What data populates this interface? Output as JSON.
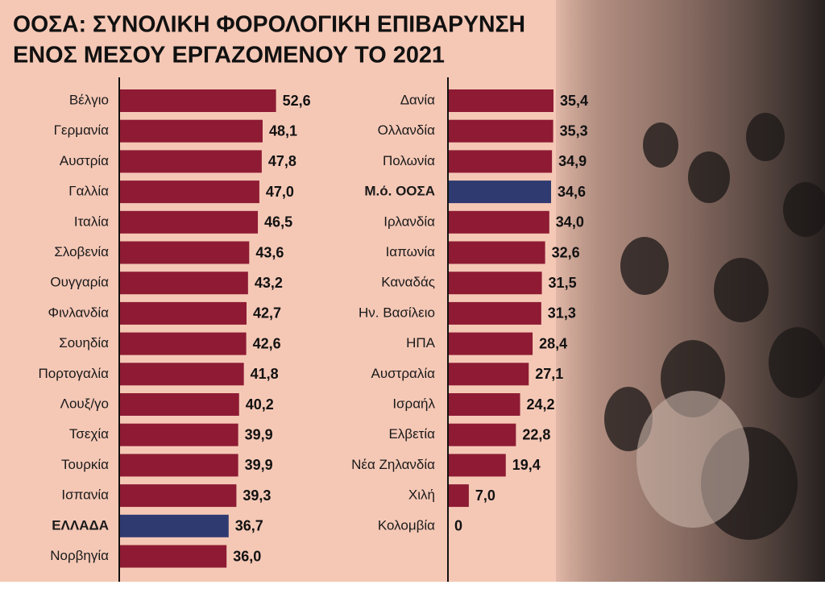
{
  "title": [
    "ΟΟΣΑ: ΣΥΝΟΛΙΚΗ ΦΟΡΟΛΟΓΙΚΗ ΕΠΙΒΑΡΥΝΣΗ",
    "ΕΝΟΣ ΜΕΣΟΥ ΕΡΓΑΖΟΜΕΝΟΥ ΤΟ 2021"
  ],
  "chart_data": [
    {
      "type": "bar",
      "orientation": "horizontal",
      "categories": [
        "Βέλγιο",
        "Γερμανία",
        "Αυστρία",
        "Γαλλία",
        "Ιταλία",
        "Σλοβενία",
        "Ουγγαρία",
        "Φινλανδία",
        "Σουηδία",
        "Πορτογαλία",
        "Λουξ/γο",
        "Τσεχία",
        "Τουρκία",
        "Ισπανία",
        "ΕΛΛΑΔΑ",
        "Νορβηγία"
      ],
      "values": [
        52.6,
        48.1,
        47.8,
        47.0,
        46.5,
        43.6,
        43.2,
        42.7,
        42.6,
        41.8,
        40.2,
        39.9,
        39.9,
        39.3,
        36.7,
        36.0
      ],
      "value_labels": [
        "52,6",
        "48,1",
        "47,8",
        "47,0",
        "46,5",
        "43,6",
        "43,2",
        "42,7",
        "42,6",
        "41,8",
        "40,2",
        "39,9",
        "39,9",
        "39,3",
        "36,7",
        "36,0"
      ],
      "colors": [
        "#8e1b33",
        "#8e1b33",
        "#8e1b33",
        "#8e1b33",
        "#8e1b33",
        "#8e1b33",
        "#8e1b33",
        "#8e1b33",
        "#8e1b33",
        "#8e1b33",
        "#8e1b33",
        "#8e1b33",
        "#8e1b33",
        "#8e1b33",
        "#2f3a70",
        "#8e1b33"
      ]
    },
    {
      "type": "bar",
      "orientation": "horizontal",
      "categories": [
        "Δανία",
        "Ολλανδία",
        "Πολωνία",
        "Μ.ό. ΟΟΣΑ",
        "Ιρλανδία",
        "Ιαπωνία",
        "Καναδάς",
        "Ην. Βασίλειο",
        "ΗΠΑ",
        "Αυστραλία",
        "Ισραήλ",
        "Ελβετία",
        "Νέα Ζηλανδία",
        "Χιλή",
        "Κολομβία"
      ],
      "values": [
        35.4,
        35.3,
        34.9,
        34.6,
        34.0,
        32.6,
        31.5,
        31.3,
        28.4,
        27.1,
        24.2,
        22.8,
        19.4,
        7.0,
        0
      ],
      "value_labels": [
        "35,4",
        "35,3",
        "34,9",
        "34,6",
        "34,0",
        "32,6",
        "31,5",
        "31,3",
        "28,4",
        "27,1",
        "24,2",
        "22,8",
        "19,4",
        "7,0",
        "0"
      ],
      "colors": [
        "#8e1b33",
        "#8e1b33",
        "#8e1b33",
        "#2f3a70",
        "#8e1b33",
        "#8e1b33",
        "#8e1b33",
        "#8e1b33",
        "#8e1b33",
        "#8e1b33",
        "#8e1b33",
        "#8e1b33",
        "#8e1b33",
        "#8e1b33",
        "#8e1b33"
      ]
    }
  ]
}
